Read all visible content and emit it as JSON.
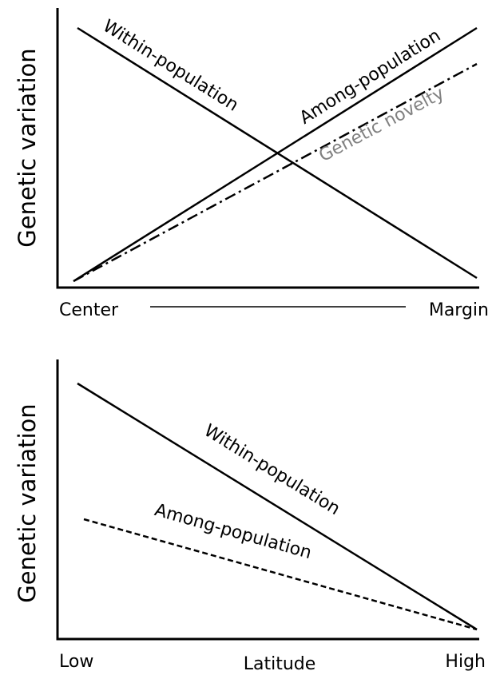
{
  "panels": [
    {
      "y_label": "Genetic variation",
      "x_left": "Center",
      "x_right": "Margin",
      "line_labels": [
        "Within-population",
        "Among-population",
        "Genetic novelty"
      ]
    },
    {
      "y_label": "Genetic variation",
      "x_left": "Low",
      "x_middle": "Latitude",
      "x_right": "High",
      "line_labels": [
        "Within-population",
        "Among-population"
      ]
    }
  ]
}
